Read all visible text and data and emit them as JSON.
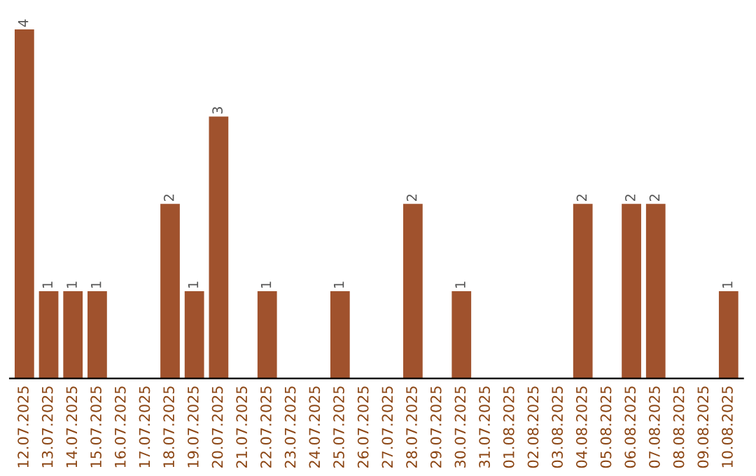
{
  "chart_data": {
    "type": "bar",
    "categories": [
      "12.07.2025",
      "13.07.2025",
      "14.07.2025",
      "15.07.2025",
      "16.07.2025",
      "17.07.2025",
      "18.07.2025",
      "19.07.2025",
      "20.07.2025",
      "21.07.2025",
      "22.07.2025",
      "23.07.2025",
      "24.07.2025",
      "25.07.2025",
      "26.07.2025",
      "27.07.2025",
      "28.07.2025",
      "29.07.2025",
      "30.07.2025",
      "31.07.2025",
      "01.08.2025",
      "02.08.2025",
      "03.08.2025",
      "04.08.2025",
      "05.08.2025",
      "06.08.2025",
      "07.08.2025",
      "08.08.2025",
      "09.08.2025",
      "10.08.2025"
    ],
    "series": [
      {
        "color": "#a0522d",
        "values": [
          4,
          1,
          1,
          1,
          0,
          0,
          2,
          1,
          3,
          0,
          1,
          0,
          0,
          1,
          0,
          0,
          2,
          0,
          1,
          0,
          0,
          0,
          0,
          2,
          0,
          2,
          2,
          0,
          0,
          1
        ],
        "value_labels": [
          "4",
          "1",
          "1",
          "1",
          null,
          null,
          "2",
          "1",
          "3",
          null,
          "1",
          null,
          null,
          "1",
          null,
          null,
          "2",
          null,
          "1",
          null,
          null,
          null,
          null,
          "2",
          null,
          "2",
          "2",
          null,
          null,
          "1"
        ]
      }
    ],
    "tick_labels": "x",
    "grid": false,
    "legend": false
  }
}
